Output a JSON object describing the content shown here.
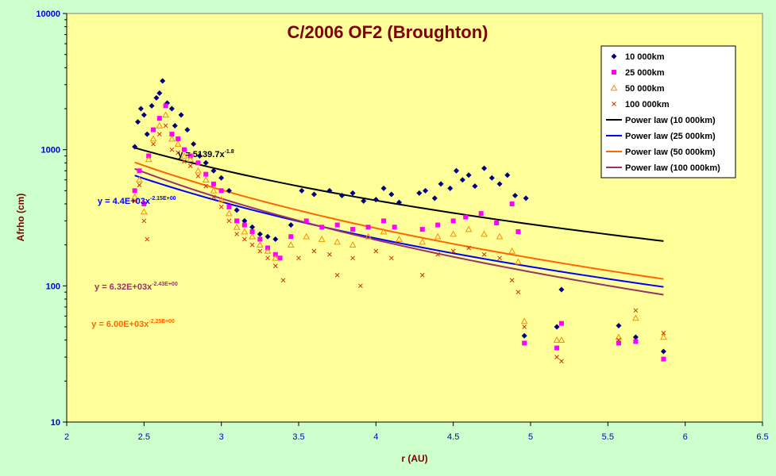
{
  "chart_data": {
    "type": "scatter",
    "title": "C/2006 OF2 (Broughton)",
    "xlabel": "r (AU)",
    "ylabel": "Afrho (cm)",
    "xlim": [
      2,
      6.5
    ],
    "ylim": [
      10,
      10000
    ],
    "y_scale": "log",
    "x_ticks": [
      "2",
      "2.5",
      "3",
      "3.5",
      "4",
      "4.5",
      "5",
      "5.5",
      "6",
      "6.5"
    ],
    "y_ticks": [
      "10",
      "100",
      "1000",
      "10000"
    ],
    "grid": false,
    "legend_position": "top-right",
    "colors": {
      "page_background": "#ccffcc",
      "plot_background": "#ffff99",
      "axis_text": "#0000cc",
      "title": "#800000"
    },
    "series": [
      {
        "name": "10 000km",
        "marker": "diamond",
        "color": "#000080",
        "points": [
          [
            2.44,
            1050
          ],
          [
            2.46,
            1600
          ],
          [
            2.48,
            2000
          ],
          [
            2.5,
            1800
          ],
          [
            2.52,
            1300
          ],
          [
            2.55,
            2100
          ],
          [
            2.58,
            2400
          ],
          [
            2.6,
            2600
          ],
          [
            2.62,
            3200
          ],
          [
            2.65,
            2200
          ],
          [
            2.68,
            2000
          ],
          [
            2.7,
            1500
          ],
          [
            2.74,
            1800
          ],
          [
            2.78,
            1400
          ],
          [
            2.82,
            1100
          ],
          [
            2.86,
            900
          ],
          [
            2.9,
            800
          ],
          [
            2.95,
            700
          ],
          [
            3.0,
            620
          ],
          [
            3.05,
            500
          ],
          [
            3.1,
            360
          ],
          [
            3.15,
            300
          ],
          [
            3.2,
            270
          ],
          [
            3.25,
            240
          ],
          [
            3.3,
            230
          ],
          [
            3.35,
            220
          ],
          [
            3.45,
            280
          ],
          [
            3.52,
            500
          ],
          [
            3.6,
            470
          ],
          [
            3.7,
            500
          ],
          [
            3.78,
            460
          ],
          [
            3.85,
            480
          ],
          [
            3.92,
            420
          ],
          [
            4.0,
            430
          ],
          [
            4.05,
            520
          ],
          [
            4.1,
            470
          ],
          [
            4.15,
            410
          ],
          [
            4.28,
            480
          ],
          [
            4.32,
            500
          ],
          [
            4.38,
            440
          ],
          [
            4.42,
            560
          ],
          [
            4.48,
            520
          ],
          [
            4.52,
            700
          ],
          [
            4.56,
            600
          ],
          [
            4.6,
            650
          ],
          [
            4.64,
            540
          ],
          [
            4.7,
            730
          ],
          [
            4.75,
            620
          ],
          [
            4.8,
            560
          ],
          [
            4.85,
            650
          ],
          [
            4.9,
            460
          ],
          [
            4.97,
            440
          ],
          [
            4.96,
            43
          ],
          [
            5.17,
            50
          ],
          [
            5.2,
            94
          ],
          [
            5.57,
            51
          ],
          [
            5.68,
            42
          ],
          [
            5.86,
            33
          ]
        ]
      },
      {
        "name": "25 000km",
        "marker": "square",
        "color": "#ff00ff",
        "points": [
          [
            2.44,
            500
          ],
          [
            2.47,
            700
          ],
          [
            2.5,
            400
          ],
          [
            2.53,
            900
          ],
          [
            2.56,
            1400
          ],
          [
            2.6,
            1700
          ],
          [
            2.64,
            2100
          ],
          [
            2.68,
            1300
          ],
          [
            2.72,
            1200
          ],
          [
            2.76,
            1000
          ],
          [
            2.8,
            900
          ],
          [
            2.85,
            800
          ],
          [
            2.9,
            660
          ],
          [
            2.95,
            560
          ],
          [
            3.0,
            500
          ],
          [
            3.05,
            380
          ],
          [
            3.1,
            300
          ],
          [
            3.15,
            280
          ],
          [
            3.2,
            250
          ],
          [
            3.25,
            220
          ],
          [
            3.3,
            190
          ],
          [
            3.35,
            170
          ],
          [
            3.38,
            160
          ],
          [
            3.45,
            230
          ],
          [
            3.55,
            300
          ],
          [
            3.65,
            270
          ],
          [
            3.75,
            280
          ],
          [
            3.85,
            260
          ],
          [
            3.95,
            270
          ],
          [
            4.05,
            300
          ],
          [
            4.12,
            270
          ],
          [
            4.3,
            260
          ],
          [
            4.4,
            280
          ],
          [
            4.5,
            300
          ],
          [
            4.58,
            320
          ],
          [
            4.68,
            340
          ],
          [
            4.78,
            290
          ],
          [
            4.88,
            400
          ],
          [
            4.92,
            250
          ],
          [
            4.96,
            38
          ],
          [
            5.17,
            35
          ],
          [
            5.2,
            53
          ],
          [
            5.57,
            38
          ],
          [
            5.68,
            39
          ],
          [
            5.86,
            29
          ]
        ]
      },
      {
        "name": "50 000km",
        "marker": "triangle",
        "color": "#ff8c00",
        "points": [
          [
            2.44,
            450
          ],
          [
            2.47,
            600
          ],
          [
            2.5,
            350
          ],
          [
            2.53,
            850
          ],
          [
            2.56,
            1200
          ],
          [
            2.6,
            1500
          ],
          [
            2.64,
            1800
          ],
          [
            2.68,
            1200
          ],
          [
            2.72,
            1100
          ],
          [
            2.76,
            900
          ],
          [
            2.8,
            850
          ],
          [
            2.85,
            700
          ],
          [
            2.9,
            600
          ],
          [
            2.95,
            500
          ],
          [
            3.0,
            430
          ],
          [
            3.05,
            340
          ],
          [
            3.1,
            270
          ],
          [
            3.15,
            250
          ],
          [
            3.2,
            230
          ],
          [
            3.25,
            200
          ],
          [
            3.3,
            180
          ],
          [
            3.35,
            160
          ],
          [
            3.45,
            200
          ],
          [
            3.55,
            230
          ],
          [
            3.65,
            220
          ],
          [
            3.75,
            210
          ],
          [
            3.85,
            200
          ],
          [
            3.95,
            230
          ],
          [
            4.05,
            250
          ],
          [
            4.15,
            220
          ],
          [
            4.3,
            210
          ],
          [
            4.4,
            230
          ],
          [
            4.5,
            240
          ],
          [
            4.6,
            260
          ],
          [
            4.7,
            240
          ],
          [
            4.8,
            230
          ],
          [
            4.88,
            180
          ],
          [
            4.92,
            150
          ],
          [
            4.96,
            55
          ],
          [
            5.17,
            40
          ],
          [
            5.2,
            40
          ],
          [
            5.57,
            42
          ],
          [
            5.68,
            58
          ],
          [
            5.86,
            42
          ]
        ]
      },
      {
        "name": "100 000km",
        "marker": "x",
        "color": "#cc3300",
        "points": [
          [
            2.44,
            420
          ],
          [
            2.47,
            550
          ],
          [
            2.5,
            300
          ],
          [
            2.52,
            220
          ],
          [
            2.56,
            1100
          ],
          [
            2.6,
            1300
          ],
          [
            2.64,
            1500
          ],
          [
            2.68,
            1000
          ],
          [
            2.72,
            950
          ],
          [
            2.76,
            820
          ],
          [
            2.8,
            760
          ],
          [
            2.85,
            640
          ],
          [
            2.9,
            540
          ],
          [
            2.95,
            450
          ],
          [
            3.0,
            380
          ],
          [
            3.05,
            300
          ],
          [
            3.1,
            240
          ],
          [
            3.15,
            220
          ],
          [
            3.2,
            200
          ],
          [
            3.25,
            180
          ],
          [
            3.3,
            160
          ],
          [
            3.35,
            140
          ],
          [
            3.4,
            110
          ],
          [
            3.5,
            160
          ],
          [
            3.6,
            180
          ],
          [
            3.7,
            170
          ],
          [
            3.75,
            120
          ],
          [
            3.85,
            160
          ],
          [
            3.9,
            100
          ],
          [
            4.0,
            180
          ],
          [
            4.1,
            160
          ],
          [
            4.3,
            120
          ],
          [
            4.4,
            170
          ],
          [
            4.5,
            180
          ],
          [
            4.6,
            190
          ],
          [
            4.7,
            170
          ],
          [
            4.8,
            160
          ],
          [
            4.88,
            110
          ],
          [
            4.92,
            90
          ],
          [
            4.96,
            50
          ],
          [
            5.17,
            30
          ],
          [
            5.2,
            28
          ],
          [
            5.57,
            40
          ],
          [
            5.68,
            66
          ],
          [
            5.86,
            45
          ]
        ]
      },
      {
        "name": "Power law (10 000km)",
        "marker": "line",
        "color": "#000000",
        "fit": {
          "a": 5139.7,
          "b": -1.8
        }
      },
      {
        "name": "Power law (25 000km)",
        "marker": "line",
        "color": "#0000ff",
        "fit": {
          "a": 4400,
          "b": -2.15
        }
      },
      {
        "name": "Power law (50 000km)",
        "marker": "line",
        "color": "#ff6600",
        "fit": {
          "a": 6000,
          "b": -2.25
        }
      },
      {
        "name": "Power law (100 000km)",
        "marker": "line",
        "color": "#993366",
        "fit": {
          "a": 6320,
          "b": -2.43
        }
      }
    ],
    "fit_x_range": [
      2.44,
      5.86
    ],
    "annotations": [
      {
        "text": "y = 5139.7x",
        "superscript": "-1.8",
        "x": 2.72,
        "y": 880,
        "color": "#000000"
      },
      {
        "text": "y = 4.4E+03x",
        "superscript": "-2.15E+00",
        "x": 2.2,
        "y": 400,
        "color": "#0000ff"
      },
      {
        "text": "y = 6.32E+03x",
        "superscript": "-2.43E+00",
        "x": 2.18,
        "y": 94,
        "color": "#993366"
      },
      {
        "text": "y = 6.00E+03x",
        "superscript": "-2.25E+00",
        "x": 2.16,
        "y": 50,
        "color": "#ff6600"
      }
    ]
  }
}
